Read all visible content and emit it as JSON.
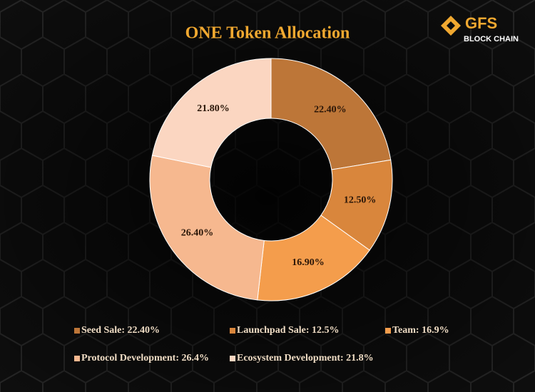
{
  "chart_data": {
    "type": "pie",
    "donut": true,
    "title": "ONE Token Allocation",
    "categories": [
      "Seed Sale: 22.40%",
      "Launchpad Sale: 12.5%",
      "Team: 16.9%",
      "Protocol Development: 26.4%",
      "Ecosystem Development: 21.8%"
    ],
    "values": [
      22.4,
      12.5,
      16.9,
      26.4,
      21.8
    ],
    "value_labels": [
      "22.40%",
      "12.50%",
      "16.90%",
      "26.40%",
      "21.80%"
    ],
    "colors": [
      "#bd7638",
      "#d9863c",
      "#f49d4c",
      "#f6b88f",
      "#fbd6c1"
    ],
    "legend": "bottom"
  },
  "logo": {
    "text": "GFS",
    "subtext": "BLOCK CHAIN"
  }
}
